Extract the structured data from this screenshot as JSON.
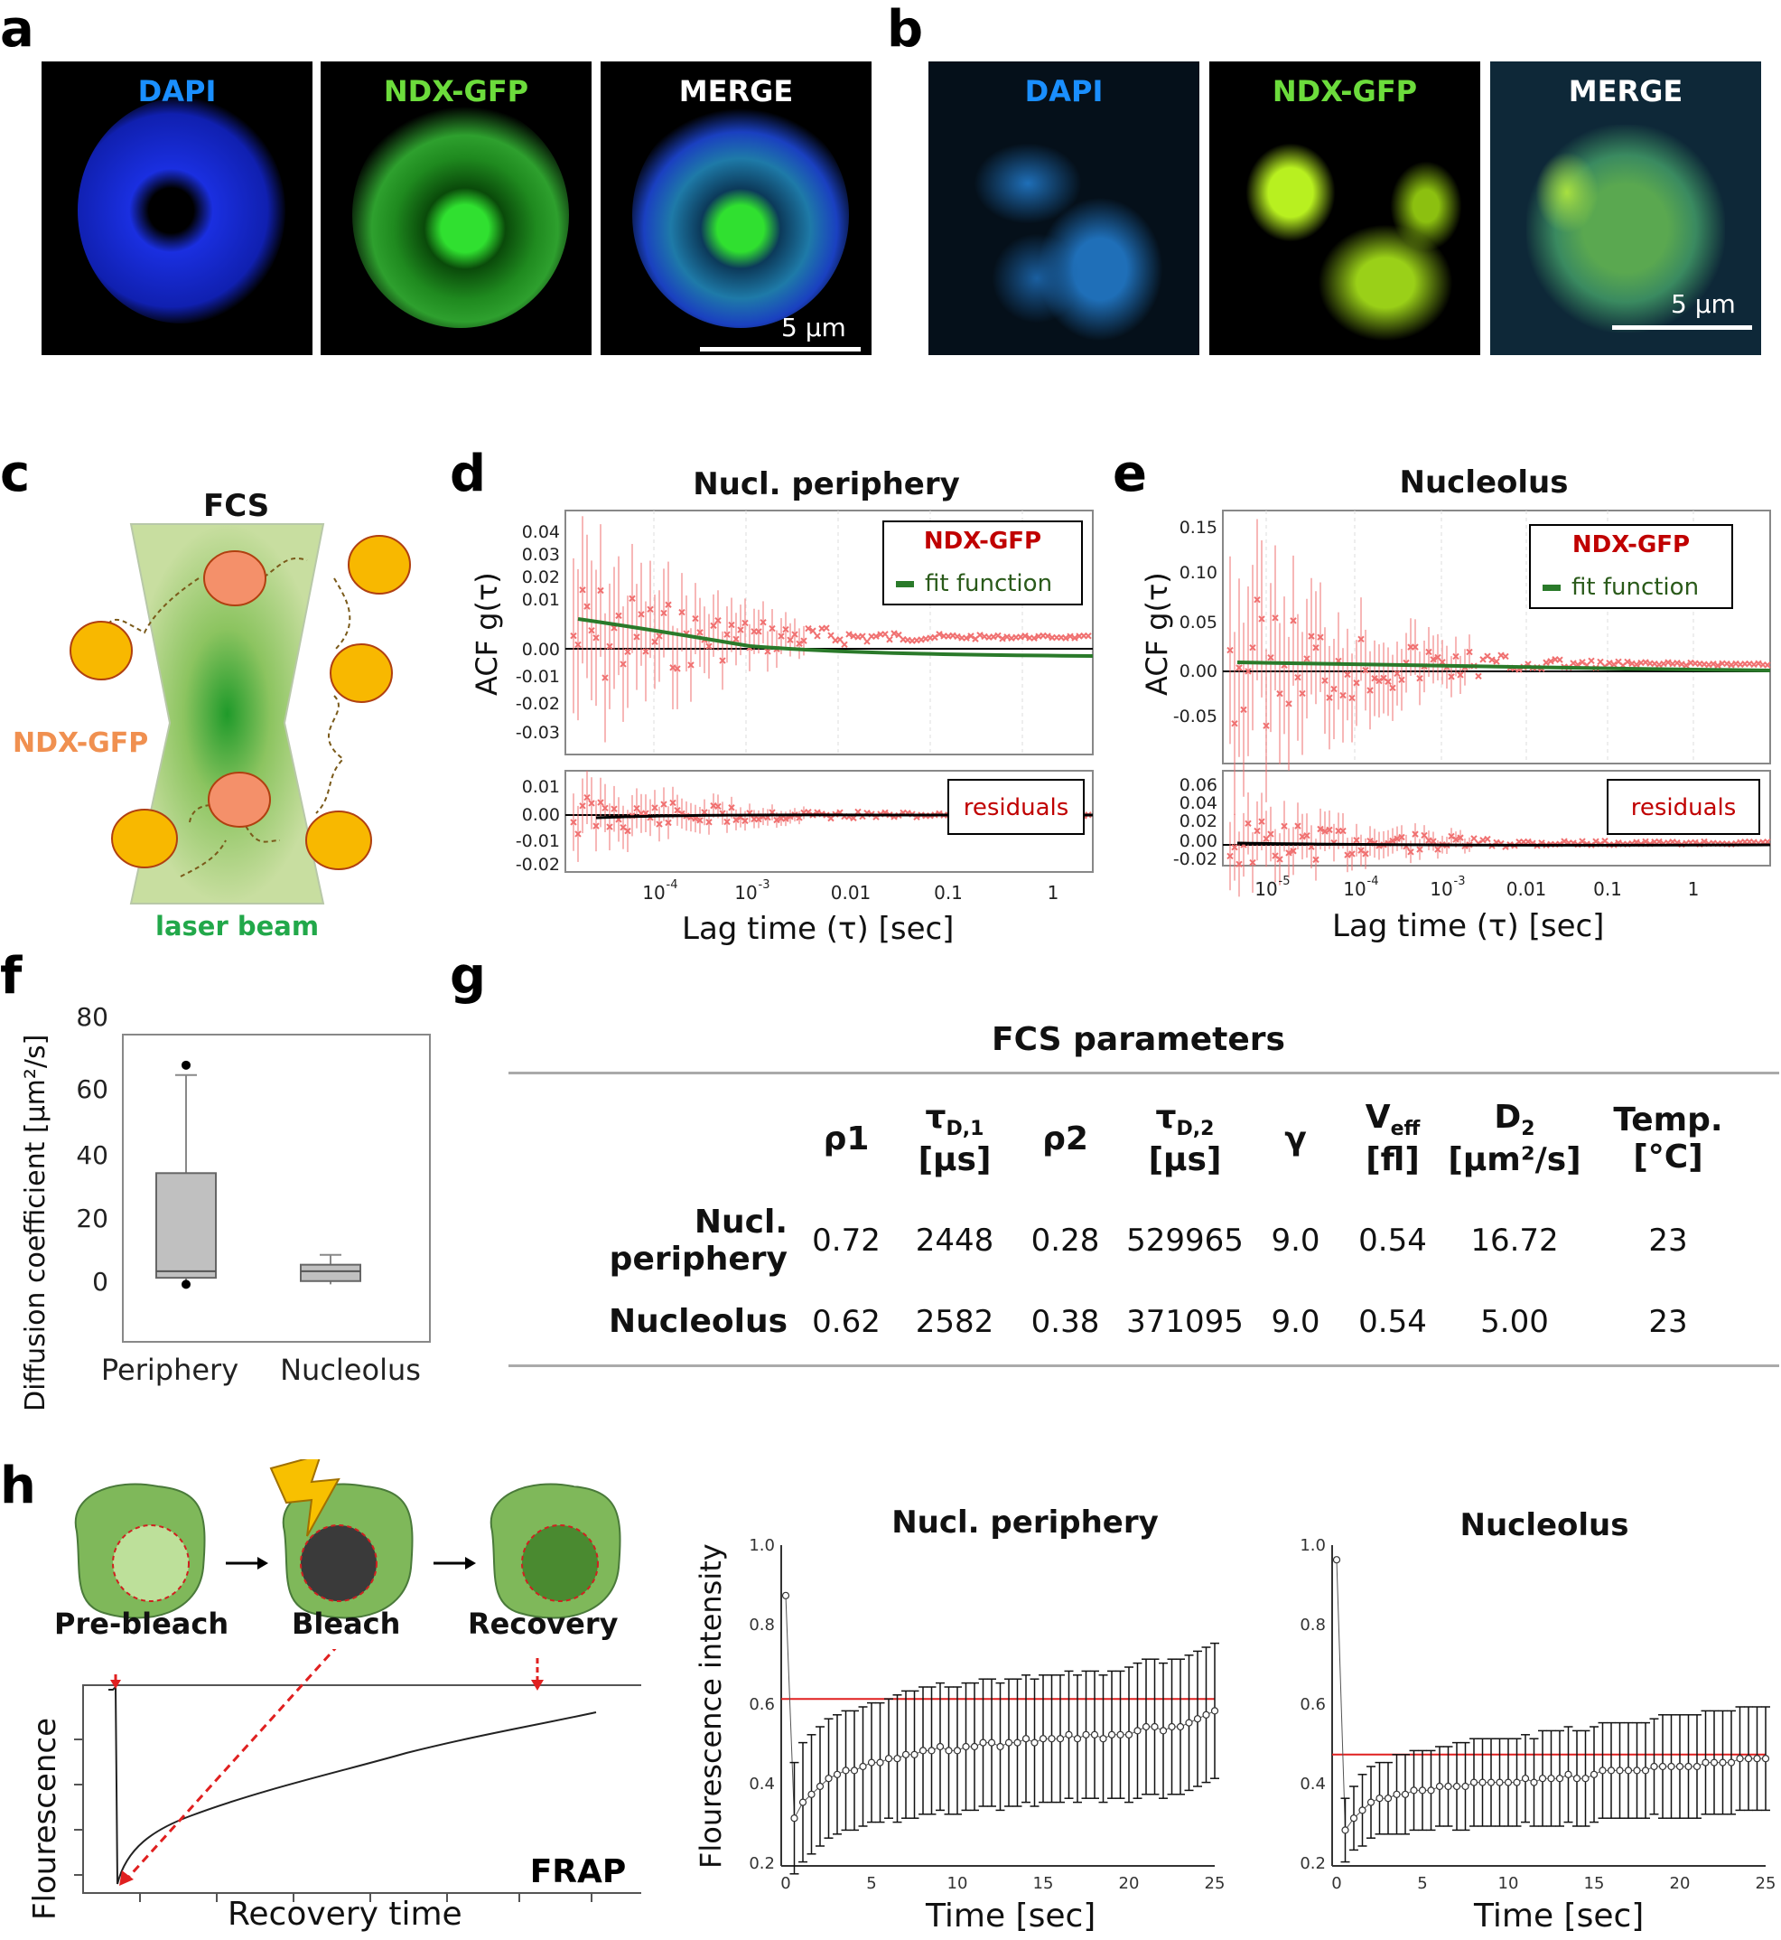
{
  "panels": {
    "a": {
      "letter": "a",
      "labels": [
        "DAPI",
        "NDX-GFP",
        "MERGE"
      ],
      "scale": "5 µm"
    },
    "b": {
      "letter": "b",
      "labels": [
        "DAPI",
        "NDX-GFP",
        "MERGE"
      ],
      "scale": "5 µm"
    },
    "c": {
      "letter": "c",
      "title": "FCS",
      "particle_label": "NDX-GFP",
      "beam_label": "laser beam"
    },
    "d": {
      "letter": "d",
      "title": "Nucl. periphery",
      "ylabel": "ACF g(τ)",
      "xlabel": "Lag time (τ) [sec]",
      "legend": [
        "NDX-GFP",
        "fit function"
      ],
      "residuals_label": "residuals",
      "yticks": [
        "0.04",
        "0.03",
        "0.02",
        "0.01",
        "0.00",
        "-0.01",
        "-0.02",
        "-0.03"
      ],
      "res_yticks": [
        "0.01",
        "0.00",
        "-0.01",
        "-0.02"
      ],
      "xticks": [
        "10",
        "10",
        "0.01",
        "0.1",
        "1"
      ],
      "xexp": [
        "-4",
        "-3"
      ]
    },
    "e": {
      "letter": "e",
      "title": "Nucleolus",
      "ylabel": "ACF g(τ)",
      "xlabel": "Lag time (τ) [sec]",
      "legend": [
        "NDX-GFP",
        "fit function"
      ],
      "residuals_label": "residuals",
      "yticks": [
        "0.15",
        "0.10",
        "0.05",
        "0.00",
        "-0.05"
      ],
      "res_yticks": [
        "0.06",
        "0.04",
        "0.02",
        "0.00",
        "-0.02"
      ],
      "xticks": [
        "10",
        "10",
        "10",
        "0.01",
        "0.1",
        "1"
      ],
      "xexp": [
        "-5",
        "-4",
        "-3"
      ]
    },
    "f": {
      "letter": "f",
      "ylabel": "Diffusion coefficient [µm²/s]",
      "yticks": [
        "80",
        "60",
        "40",
        "20",
        "0"
      ],
      "categories": [
        "Periphery",
        "Nucleolus"
      ]
    },
    "g": {
      "letter": "g",
      "title": "FCS parameters"
    },
    "h": {
      "letter": "h",
      "steps": [
        "Pre-bleach",
        "Bleach",
        "Recovery"
      ],
      "frap_label": "FRAP",
      "frap_ylabel": "Flourescence",
      "frap_xlabel": "Recovery time",
      "chart1_title": "Nucl. periphery",
      "chart2_title": "Nucleolus",
      "chart_ylabel": "Flourescence intensity",
      "chart_xlabel": "Time [sec]",
      "yticks": [
        "1.0",
        "0.8",
        "0.6",
        "0.4",
        "0.2"
      ],
      "xticks": [
        "0",
        "5",
        "10",
        "15",
        "20",
        "25"
      ]
    }
  },
  "fcs_table": {
    "headers": [
      {
        "main": "ρ1",
        "sub": ""
      },
      {
        "main": "τ",
        "sub": "D,1",
        "unit": "[µs]"
      },
      {
        "main": "ρ2",
        "sub": ""
      },
      {
        "main": "τ",
        "sub": "D,2",
        "unit": "[µs]"
      },
      {
        "main": "γ",
        "sub": ""
      },
      {
        "main": "V",
        "sub": "eff",
        "unit": "[fl]"
      },
      {
        "main": "D",
        "sub": "2",
        "unit": "[µm²/s]"
      },
      {
        "main": "Temp.",
        "sub": "",
        "unit": "[°C]"
      }
    ],
    "rows": [
      {
        "label": "Nucl. periphery",
        "values": [
          "0.72",
          "2448",
          "0.28",
          "529965",
          "9.0",
          "0.54",
          "16.72",
          "23"
        ]
      },
      {
        "label": "Nucleolus",
        "values": [
          "0.62",
          "2582",
          "0.38",
          "371095",
          "9.0",
          "0.54",
          "5.00",
          "23"
        ]
      }
    ]
  },
  "chart_data": [
    {
      "type": "box",
      "categories": [
        "Periphery",
        "Nucleolus"
      ],
      "ylim": [
        0,
        80
      ],
      "series": [
        {
          "name": "Periphery",
          "min": 2,
          "q1": 3,
          "median": 5,
          "q3": 35,
          "max": 65,
          "outliers": [
            68,
            1
          ]
        },
        {
          "name": "Nucleolus",
          "min": 1,
          "q1": 2,
          "median": 5,
          "q3": 7,
          "max": 10,
          "outliers": []
        }
      ]
    },
    {
      "type": "scatter",
      "title": "Nucl. periphery",
      "xlim": [
        0,
        25
      ],
      "ylim": [
        0.2,
        1.0
      ],
      "reference_line": 0.62,
      "x": [
        0,
        0.5,
        1,
        1.5,
        2,
        2.5,
        3,
        3.5,
        4,
        4.5,
        5,
        5.5,
        6,
        6.5,
        7,
        7.5,
        8,
        8.5,
        9,
        9.5,
        10,
        10.5,
        11,
        11.5,
        12,
        12.5,
        13,
        13.5,
        14,
        14.5,
        15,
        15.5,
        16,
        16.5,
        17,
        17.5,
        18,
        18.5,
        19,
        19.5,
        20,
        20.5,
        21,
        21.5,
        22,
        22.5,
        23,
        23.5,
        24,
        24.5,
        25
      ],
      "y": [
        0.88,
        0.32,
        0.36,
        0.38,
        0.4,
        0.42,
        0.43,
        0.44,
        0.44,
        0.45,
        0.46,
        0.46,
        0.47,
        0.47,
        0.48,
        0.48,
        0.49,
        0.49,
        0.5,
        0.49,
        0.49,
        0.5,
        0.5,
        0.51,
        0.51,
        0.5,
        0.51,
        0.51,
        0.52,
        0.51,
        0.52,
        0.52,
        0.52,
        0.53,
        0.52,
        0.53,
        0.53,
        0.52,
        0.53,
        0.53,
        0.53,
        0.54,
        0.55,
        0.55,
        0.54,
        0.55,
        0.55,
        0.56,
        0.57,
        0.58,
        0.59
      ],
      "err": [
        0.0,
        0.14,
        0.15,
        0.15,
        0.15,
        0.15,
        0.15,
        0.15,
        0.15,
        0.15,
        0.15,
        0.15,
        0.15,
        0.16,
        0.16,
        0.16,
        0.16,
        0.16,
        0.16,
        0.16,
        0.16,
        0.16,
        0.16,
        0.16,
        0.16,
        0.16,
        0.16,
        0.16,
        0.16,
        0.16,
        0.16,
        0.16,
        0.16,
        0.16,
        0.16,
        0.16,
        0.16,
        0.16,
        0.16,
        0.16,
        0.17,
        0.17,
        0.17,
        0.17,
        0.17,
        0.17,
        0.17,
        0.17,
        0.17,
        0.17,
        0.17
      ]
    },
    {
      "type": "scatter",
      "title": "Nucleolus",
      "xlim": [
        0,
        25
      ],
      "ylim": [
        0.2,
        1.0
      ],
      "reference_line": 0.48,
      "x": [
        0,
        0.5,
        1,
        1.5,
        2,
        2.5,
        3,
        3.5,
        4,
        4.5,
        5,
        5.5,
        6,
        6.5,
        7,
        7.5,
        8,
        8.5,
        9,
        9.5,
        10,
        10.5,
        11,
        11.5,
        12,
        12.5,
        13,
        13.5,
        14,
        14.5,
        15,
        15.5,
        16,
        16.5,
        17,
        17.5,
        18,
        18.5,
        19,
        19.5,
        20,
        20.5,
        21,
        21.5,
        22,
        22.5,
        23,
        23.5,
        24,
        24.5,
        25
      ],
      "y": [
        0.97,
        0.29,
        0.32,
        0.34,
        0.36,
        0.37,
        0.37,
        0.38,
        0.38,
        0.39,
        0.39,
        0.39,
        0.4,
        0.4,
        0.4,
        0.4,
        0.41,
        0.41,
        0.41,
        0.41,
        0.41,
        0.41,
        0.42,
        0.41,
        0.42,
        0.42,
        0.42,
        0.43,
        0.42,
        0.42,
        0.43,
        0.44,
        0.44,
        0.44,
        0.44,
        0.44,
        0.44,
        0.45,
        0.45,
        0.45,
        0.45,
        0.45,
        0.45,
        0.46,
        0.46,
        0.46,
        0.46,
        0.47,
        0.47,
        0.47,
        0.47
      ],
      "err": [
        0.0,
        0.08,
        0.08,
        0.09,
        0.09,
        0.09,
        0.09,
        0.1,
        0.1,
        0.1,
        0.1,
        0.1,
        0.1,
        0.1,
        0.11,
        0.11,
        0.11,
        0.11,
        0.11,
        0.11,
        0.11,
        0.11,
        0.11,
        0.11,
        0.12,
        0.12,
        0.12,
        0.12,
        0.12,
        0.12,
        0.12,
        0.12,
        0.12,
        0.12,
        0.12,
        0.12,
        0.12,
        0.12,
        0.13,
        0.13,
        0.13,
        0.13,
        0.13,
        0.13,
        0.13,
        0.13,
        0.13,
        0.13,
        0.13,
        0.13,
        0.13
      ]
    }
  ]
}
